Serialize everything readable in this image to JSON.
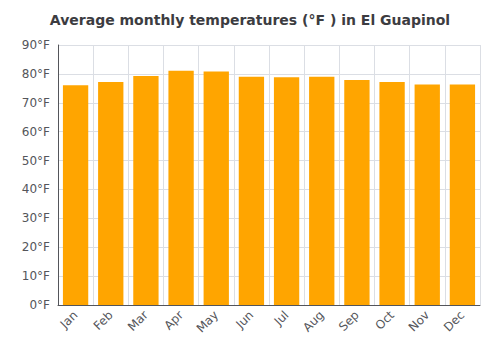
{
  "chart_data": {
    "type": "bar",
    "title": "Average monthly temperatures (°F ) in El Guapinol",
    "categories": [
      "Jan",
      "Feb",
      "Mar",
      "Apr",
      "May",
      "Jun",
      "Jul",
      "Aug",
      "Sep",
      "Oct",
      "Nov",
      "Dec"
    ],
    "values": [
      76.1,
      77.2,
      79.3,
      81.1,
      80.8,
      79.0,
      78.8,
      79.0,
      77.9,
      77.2,
      76.3,
      76.3
    ],
    "color": "#FFA500",
    "ylim": [
      0,
      90
    ],
    "yticks": [
      {
        "value": 0,
        "label": "0°F"
      },
      {
        "value": 10,
        "label": "10°F"
      },
      {
        "value": 20,
        "label": "20°F"
      },
      {
        "value": 30,
        "label": "30°F"
      },
      {
        "value": 40,
        "label": "40°F"
      },
      {
        "value": 50,
        "label": "50°F"
      },
      {
        "value": 60,
        "label": "60°F"
      },
      {
        "value": 70,
        "label": "70°F"
      },
      {
        "value": 80,
        "label": "80°F"
      },
      {
        "value": 90,
        "label": "90°F"
      }
    ],
    "grid": true
  }
}
